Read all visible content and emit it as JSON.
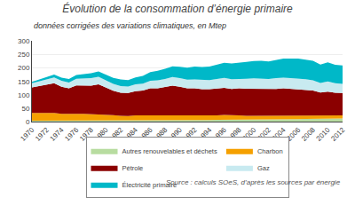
{
  "chart_data": {
    "type": "area",
    "title": "Évolution de la consommation d’énergie primaire",
    "subtitle": "données corrigées des variations climatiques, en Mtep",
    "source": "Source : calculs SOeS, d’après les sources par énergie",
    "x": [
      1970,
      1971,
      1972,
      1973,
      1974,
      1975,
      1976,
      1977,
      1978,
      1979,
      1980,
      1981,
      1982,
      1983,
      1984,
      1985,
      1986,
      1987,
      1988,
      1989,
      1990,
      1991,
      1992,
      1993,
      1994,
      1995,
      1996,
      1997,
      1998,
      1999,
      2000,
      2001,
      2002,
      2003,
      2004,
      2005,
      2006,
      2007,
      2008,
      2009,
      2010,
      2011,
      2012
    ],
    "series": [
      {
        "name": "Autres renouvelables et déchets",
        "color": "#b8dca0",
        "values": [
          5,
          5,
          5,
          5,
          5,
          5,
          5,
          5,
          5,
          5,
          5,
          5,
          5,
          6,
          6,
          6,
          6,
          6,
          6,
          6,
          7,
          7,
          7,
          7,
          7,
          8,
          8,
          8,
          8,
          9,
          9,
          9,
          9,
          10,
          10,
          10,
          10,
          11,
          11,
          12,
          12,
          12,
          13
        ]
      },
      {
        "name": "Charbon",
        "color": "#f5a000",
        "values": [
          28,
          28,
          28,
          28,
          25,
          24,
          25,
          25,
          24,
          24,
          22,
          20,
          18,
          16,
          18,
          18,
          18,
          18,
          18,
          18,
          18,
          17,
          17,
          16,
          16,
          16,
          18,
          16,
          16,
          14,
          14,
          14,
          14,
          14,
          14,
          14,
          14,
          14,
          13,
          12,
          12,
          11,
          11
        ]
      },
      {
        "name": "Pétrole",
        "color": "#8b0000",
        "values": [
          95,
          100,
          105,
          110,
          100,
          95,
          105,
          105,
          105,
          110,
          100,
          90,
          85,
          85,
          90,
          92,
          100,
          100,
          105,
          110,
          105,
          100,
          100,
          98,
          98,
          100,
          100,
          98,
          100,
          100,
          100,
          100,
          98,
          98,
          100,
          98,
          97,
          95,
          92,
          85,
          88,
          85,
          83
        ]
      },
      {
        "name": "Gaz",
        "color": "#c8eaf0",
        "values": [
          15,
          17,
          20,
          22,
          22,
          22,
          25,
          27,
          28,
          28,
          27,
          26,
          25,
          24,
          25,
          26,
          28,
          30,
          30,
          32,
          32,
          32,
          33,
          34,
          34,
          35,
          37,
          36,
          36,
          37,
          38,
          38,
          38,
          40,
          40,
          40,
          40,
          38,
          38,
          35,
          38,
          35,
          34
        ]
      },
      {
        "name": "Électricité primaire",
        "color": "#00b8c8",
        "values": [
          5,
          6,
          8,
          10,
          12,
          13,
          14,
          15,
          18,
          20,
          20,
          22,
          24,
          24,
          26,
          28,
          32,
          35,
          38,
          40,
          42,
          45,
          48,
          48,
          50,
          52,
          56,
          58,
          60,
          62,
          64,
          65,
          65,
          67,
          70,
          72,
          73,
          72,
          72,
          68,
          70,
          68,
          68
        ]
      }
    ],
    "stacked": true,
    "xlim": [
      1970,
      2012
    ],
    "xticks": [
      1970,
      1972,
      1974,
      1976,
      1978,
      1980,
      1982,
      1984,
      1986,
      1988,
      1990,
      1992,
      1994,
      1996,
      1998,
      2000,
      2002,
      2004,
      2006,
      2008,
      2010,
      2012
    ],
    "ylim": [
      0,
      300
    ],
    "yticks": [
      0,
      50,
      100,
      150,
      200,
      250,
      300
    ],
    "grid": true,
    "legend": "bottom"
  }
}
